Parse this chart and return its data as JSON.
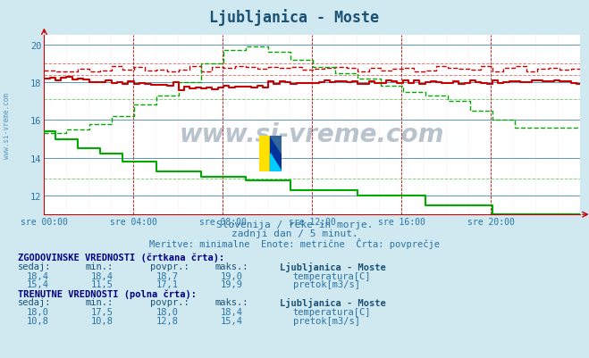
{
  "title": "Ljubljanica - Moste",
  "subtitle1": "Slovenija / reke in morje.",
  "subtitle2": "zadnji dan / 5 minut.",
  "subtitle3": "Meritve: minimalne  Enote: metrične  Črta: povprečje",
  "background_color": "#d0e8f0",
  "plot_bg_color": "#ffffff",
  "title_color": "#1a5276",
  "subtitle_color": "#2874a6",
  "tick_color": "#2874a6",
  "xlabels": [
    "sre 00:00",
    "sre 04:00",
    "sre 08:00",
    "sre 12:00",
    "sre 16:00",
    "sre 20:00"
  ],
  "ylim": [
    11.0,
    20.5
  ],
  "yticks": [
    12,
    14,
    16,
    18,
    20
  ],
  "temp_solid_color": "#cc0000",
  "temp_dashed_color": "#cc0000",
  "flow_solid_color": "#00aa00",
  "flow_dashed_color": "#00aa00",
  "watermark_color": "#1a3a5c",
  "table_header_color": "#1a5276",
  "table_text_color": "#2874a6",
  "table_bold_color": "#000080",
  "temp_legend_color": "#cc0000",
  "flow_legend_color": "#00cc00",
  "n_points": 288
}
